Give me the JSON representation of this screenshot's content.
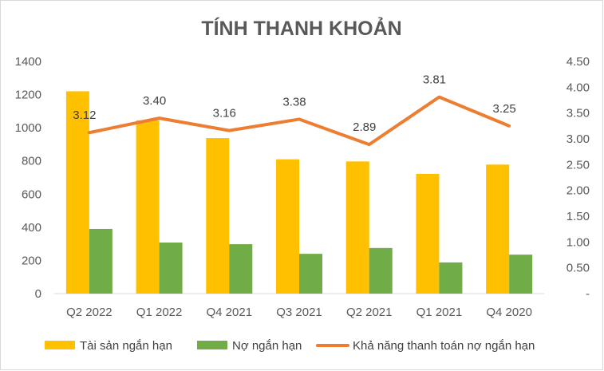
{
  "chart_data": {
    "type": "bar",
    "title": "TÍNH THANH KHOẢN",
    "categories": [
      "Q2 2022",
      "Q1 2022",
      "Q4 2021",
      "Q3 2021",
      "Q2 2021",
      "Q1 2021",
      "Q4 2020"
    ],
    "series": [
      {
        "name": "Tài sản ngắn hạn",
        "type": "bar",
        "axis": "left",
        "color": "#FFC000",
        "values": [
          1220,
          1045,
          938,
          810,
          797,
          722,
          778
        ]
      },
      {
        "name": "Nợ ngắn hạn",
        "type": "bar",
        "axis": "left",
        "color": "#70AD47",
        "values": [
          390,
          308,
          298,
          240,
          275,
          188,
          235
        ]
      },
      {
        "name": "Khả năng thanh toán nợ ngắn hạn",
        "type": "line",
        "axis": "right",
        "color": "#ED7D31",
        "values": [
          3.12,
          3.4,
          3.16,
          3.38,
          2.89,
          3.81,
          3.25
        ],
        "labels": [
          "3.12",
          "3.40",
          "3.16",
          "3.38",
          "2.89",
          "3.81",
          "3.25"
        ]
      }
    ],
    "y_left": {
      "min": 0,
      "max": 1400,
      "step": 200,
      "ticks": [
        "0",
        "200",
        "400",
        "600",
        "800",
        "1000",
        "1200",
        "1400"
      ]
    },
    "y_right": {
      "min": 0,
      "max": 4.5,
      "step": 0.5,
      "ticks": [
        "-",
        "0.50",
        "1.00",
        "1.50",
        "2.00",
        "2.50",
        "3.00",
        "3.50",
        "4.00",
        "4.50"
      ]
    },
    "grid": false,
    "legend_position": "bottom"
  }
}
